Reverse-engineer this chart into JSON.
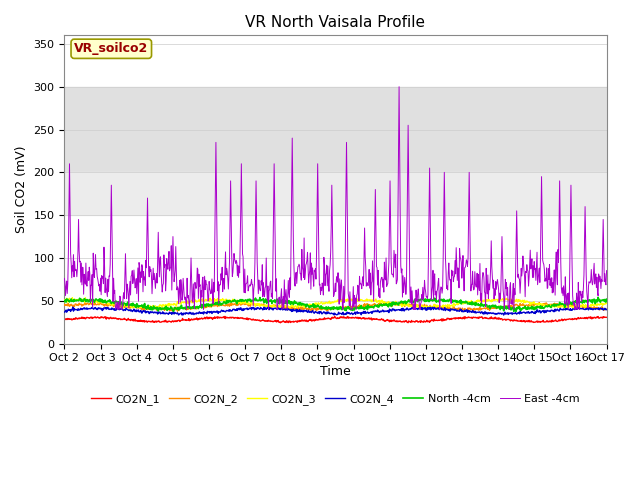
{
  "title": "VR North Vaisala Profile",
  "ylabel": "Soil CO2 (mV)",
  "xlabel": "Time",
  "annotation": "VR_soilco2",
  "ylim": [
    0,
    360
  ],
  "yticks": [
    0,
    50,
    100,
    150,
    200,
    250,
    300,
    350
  ],
  "x_tick_labels": [
    "Oct 2",
    "Oct 3",
    "Oct 4",
    "Oct 5",
    "Oct 6",
    "Oct 7",
    "Oct 8",
    "Oct 9",
    "Oct 10",
    "Oct 11",
    "Oct 12",
    "Oct 13",
    "Oct 14",
    "Oct 15",
    "Oct 16",
    "Oct 17"
  ],
  "legend_labels": [
    "CO2N_1",
    "CO2N_2",
    "CO2N_3",
    "CO2N_4",
    "North -4cm",
    "East -4cm"
  ],
  "line_colors": [
    "#ff0000",
    "#ff8c00",
    "#ffff00",
    "#0000cc",
    "#00cc00",
    "#aa00cc"
  ],
  "band1_color": "#e0e0e0",
  "band2_color": "#ececec",
  "title_fontsize": 11,
  "tick_fontsize": 8,
  "label_fontsize": 9,
  "annotation_fontsize": 9,
  "annotation_color": "#990000",
  "annotation_bg_color": "#ffffcc",
  "annotation_border_color": "#999900"
}
